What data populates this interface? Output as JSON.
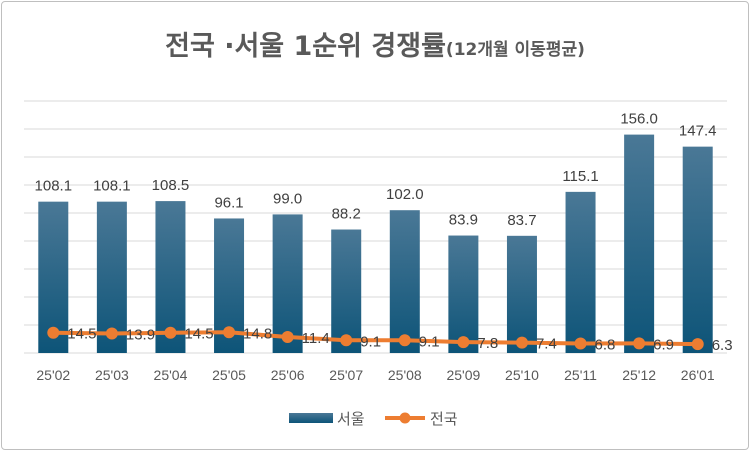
{
  "chart_data": {
    "type": "bar+line",
    "title": "전국 ·서울 1순위 경쟁률",
    "subtitle": "(12개월 이동평균)",
    "categories": [
      "25'02",
      "25'03",
      "25'04",
      "25'05",
      "25'06",
      "25'07",
      "25'08",
      "25'09",
      "25'10",
      "25'11",
      "25'12",
      "26'01"
    ],
    "series": [
      {
        "name": "서울",
        "type": "bar",
        "color": "#0d5478",
        "values": [
          108.1,
          108.1,
          108.5,
          96.1,
          99.0,
          88.2,
          102.0,
          83.9,
          83.7,
          115.1,
          156.0,
          147.4
        ]
      },
      {
        "name": "전국",
        "type": "line",
        "color": "#ed7d31",
        "values": [
          14.5,
          13.9,
          14.5,
          14.8,
          11.4,
          9.1,
          9.1,
          7.8,
          7.4,
          6.8,
          6.9,
          6.3
        ]
      }
    ],
    "ylim": [
      0,
      180
    ],
    "grid": true,
    "legend": "bottom"
  }
}
